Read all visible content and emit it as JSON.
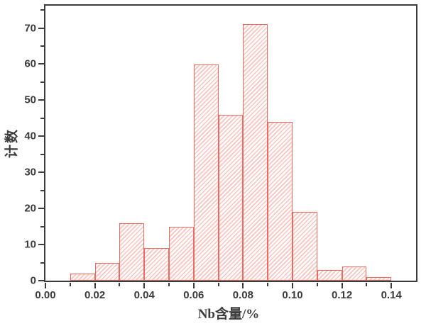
{
  "chart_data": {
    "type": "bar",
    "subtype": "histogram",
    "title": "",
    "xlabel": "Nb含量/%",
    "ylabel": "计数",
    "bin_start": 0.01,
    "bin_width": 0.01,
    "bin_edges": [
      0.01,
      0.02,
      0.03,
      0.04,
      0.05,
      0.06,
      0.07,
      0.08,
      0.09,
      0.1,
      0.11,
      0.12,
      0.13,
      0.14
    ],
    "values": [
      2,
      5,
      16,
      9,
      15,
      60,
      46,
      71,
      44,
      19,
      3,
      4,
      1
    ],
    "xlim": [
      0,
      0.15
    ],
    "ylim": [
      0,
      76.2
    ],
    "grid": false,
    "legend": null,
    "x_major_ticks": [
      {
        "v": 0.0,
        "label": "0.00"
      },
      {
        "v": 0.02,
        "label": "0.02"
      },
      {
        "v": 0.04,
        "label": "0.04"
      },
      {
        "v": 0.06,
        "label": "0.06"
      },
      {
        "v": 0.08,
        "label": "0.08"
      },
      {
        "v": 0.1,
        "label": "0.10"
      },
      {
        "v": 0.12,
        "label": "0.12"
      },
      {
        "v": 0.14,
        "label": "0.14"
      }
    ],
    "x_minor_ticks": [
      0.01,
      0.03,
      0.05,
      0.07,
      0.09,
      0.11,
      0.13
    ],
    "y_major_ticks": [
      {
        "v": 0,
        "label": "0"
      },
      {
        "v": 10,
        "label": "10"
      },
      {
        "v": 20,
        "label": "20"
      },
      {
        "v": 30,
        "label": "30"
      },
      {
        "v": 40,
        "label": "40"
      },
      {
        "v": 50,
        "label": "50"
      },
      {
        "v": 60,
        "label": "60"
      },
      {
        "v": 70,
        "label": "70"
      }
    ],
    "y_minor_ticks": [
      5,
      15,
      25,
      35,
      45,
      55,
      65,
      75
    ],
    "hatch": "forward-diagonal",
    "colors": {
      "bar_edge": "#ef695e",
      "bar_hatch": "#f8c4bd",
      "axis": "#3c3c3c",
      "text": "#3b3b3b",
      "background": "#ffffff"
    }
  }
}
